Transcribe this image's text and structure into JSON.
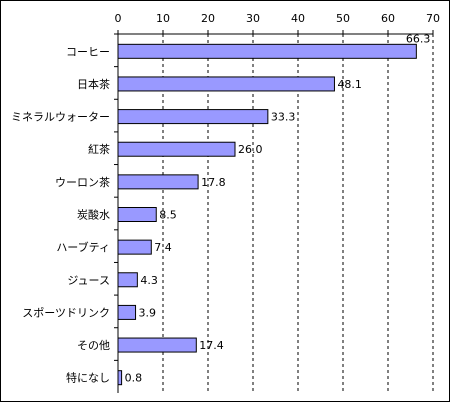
{
  "chart_data": {
    "type": "bar",
    "orientation": "horizontal",
    "categories": [
      "コーヒー",
      "日本茶",
      "ミネラルウォーター",
      "紅茶",
      "ウーロン茶",
      "炭酸水",
      "ハーブティ",
      "ジュース",
      "スポーツドリンク",
      "その他",
      "特になし"
    ],
    "values": [
      66.3,
      48.1,
      33.3,
      26.0,
      17.8,
      8.5,
      7.4,
      4.3,
      3.9,
      17.4,
      0.8
    ],
    "value_labels": [
      "66.3",
      "48.1",
      "33.3",
      "26.0",
      "17.8",
      "8.5",
      "7.4",
      "4.3",
      "3.9",
      "17.4",
      "0.8"
    ],
    "xticks": [
      "0",
      "10",
      "20",
      "30",
      "40",
      "50",
      "60",
      "70"
    ],
    "xlim": [
      0,
      70
    ],
    "x_axis_position": "top",
    "grid": "vertical dashed",
    "bar_color": "#9999ff",
    "bar_border_color": "#000000",
    "title": "",
    "xlabel": "",
    "ylabel": ""
  }
}
